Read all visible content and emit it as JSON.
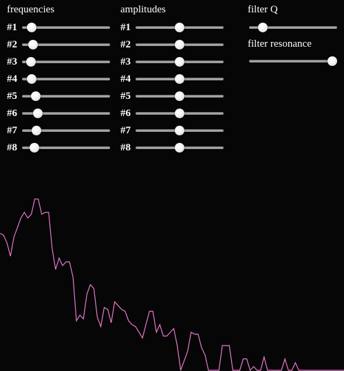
{
  "frequencies": {
    "title": "frequencies",
    "sliders": [
      {
        "label": "#1",
        "value": 0.06
      },
      {
        "label": "#2",
        "value": 0.08
      },
      {
        "label": "#3",
        "value": 0.05
      },
      {
        "label": "#4",
        "value": 0.06
      },
      {
        "label": "#5",
        "value": 0.11
      },
      {
        "label": "#6",
        "value": 0.14
      },
      {
        "label": "#7",
        "value": 0.12
      },
      {
        "label": "#8",
        "value": 0.1
      }
    ]
  },
  "amplitudes": {
    "title": "amplitudes",
    "sliders": [
      {
        "label": "#1",
        "value": 0.5
      },
      {
        "label": "#2",
        "value": 0.5
      },
      {
        "label": "#3",
        "value": 0.5
      },
      {
        "label": "#4",
        "value": 0.5
      },
      {
        "label": "#5",
        "value": 0.5
      },
      {
        "label": "#6",
        "value": 0.5
      },
      {
        "label": "#7",
        "value": 0.5
      },
      {
        "label": "#8",
        "value": 0.5
      }
    ]
  },
  "filter_q": {
    "title": "filter Q",
    "value": 0.11
  },
  "filter_resonance": {
    "title": "filter resonance",
    "value": 1.0
  },
  "spectrum": {
    "color": "#e87ad0",
    "levels": [
      0.72,
      0.71,
      0.67,
      0.6,
      0.7,
      0.75,
      0.8,
      0.83,
      0.8,
      0.82,
      0.9,
      0.9,
      0.82,
      0.83,
      0.83,
      0.64,
      0.53,
      0.59,
      0.55,
      0.57,
      0.57,
      0.49,
      0.26,
      0.29,
      0.27,
      0.4,
      0.45,
      0.43,
      0.28,
      0.23,
      0.33,
      0.32,
      0.25,
      0.36,
      0.34,
      0.32,
      0.31,
      0.26,
      0.24,
      0.23,
      0.2,
      0.17,
      0.24,
      0.31,
      0.31,
      0.2,
      0.24,
      0.18,
      0.18,
      0.2,
      0.22,
      0.13,
      0.0,
      0.05,
      0.1,
      0.2,
      0.19,
      0.19,
      0.12,
      0.08,
      0.0,
      0.0,
      0.0,
      0.0,
      0.13,
      0.13,
      0.13,
      0.0,
      0.0,
      0.0,
      0.06,
      0.06,
      0.0,
      0.02,
      0.0,
      0.0,
      0.07,
      0.0,
      0.0,
      0.0,
      0.0,
      0.0,
      0.06,
      0.0,
      0.0,
      0.04,
      0.0,
      0.0,
      0.0,
      0.0,
      0.0,
      0.0,
      0.0,
      0.0,
      0.0,
      0.0,
      0.0,
      0.0,
      0.0,
      0.0
    ]
  }
}
